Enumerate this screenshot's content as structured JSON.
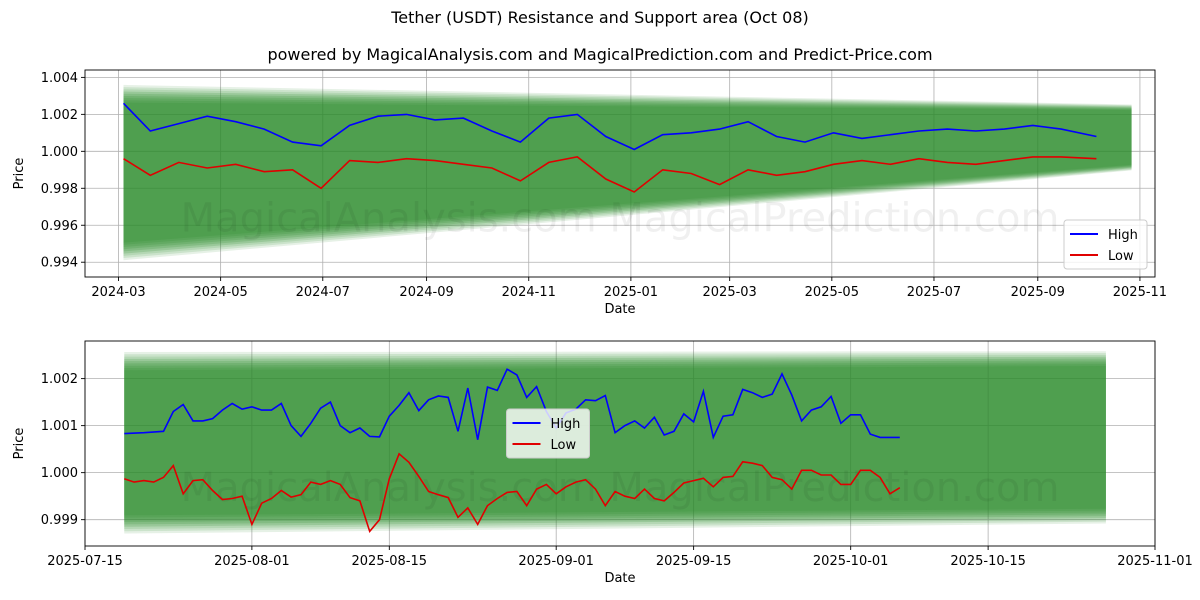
{
  "title": "Tether (USDT) Resistance and Support area (Oct 08)",
  "subtitle": "powered by MagicalAnalysis.com and MagicalPrediction.com and Predict-Price.com",
  "watermark": "MagicalAnalysis.com    MagicalPrediction.com",
  "colors": {
    "high": "#0000ff",
    "low": "#e00000",
    "band": "#2e8b2e",
    "grid": "#b0b0b0"
  },
  "chart_data": [
    {
      "type": "line",
      "name": "full-range",
      "xlabel": "Date",
      "ylabel": "Price",
      "xlim": [
        "2024-02-10",
        "2025-11-10"
      ],
      "ylim": [
        0.9932,
        1.0044
      ],
      "xticks": [
        {
          "date": "2024-03-01",
          "label": "2024-03"
        },
        {
          "date": "2024-05-01",
          "label": "2024-05"
        },
        {
          "date": "2024-07-01",
          "label": "2024-07"
        },
        {
          "date": "2024-09-01",
          "label": "2024-09"
        },
        {
          "date": "2024-11-01",
          "label": "2024-11"
        },
        {
          "date": "2025-01-01",
          "label": "2025-01"
        },
        {
          "date": "2025-03-01",
          "label": "2025-03"
        },
        {
          "date": "2025-05-01",
          "label": "2025-05"
        },
        {
          "date": "2025-07-01",
          "label": "2025-07"
        },
        {
          "date": "2025-09-01",
          "label": "2025-09"
        },
        {
          "date": "2025-11-01",
          "label": "2025-11"
        }
      ],
      "yticks": [
        0.994,
        0.996,
        0.998,
        1.0,
        1.002,
        1.004
      ],
      "ytick_labels": [
        "0.994",
        "0.996",
        "0.998",
        "1.000",
        "1.002",
        "1.004"
      ],
      "grid": true,
      "legend_position": "lower-right",
      "band": {
        "x_start": "2024-03-04",
        "x_end": "2025-10-27",
        "upper_start": 1.0038,
        "upper_end": 1.0026,
        "lower_start": 0.9939,
        "lower_end": 0.9989
      },
      "series": [
        {
          "name": "High",
          "color": "#0000ff",
          "x": [
            "2024-03-04",
            "2024-03-20",
            "2024-04-06",
            "2024-04-23",
            "2024-05-10",
            "2024-05-27",
            "2024-06-13",
            "2024-06-30",
            "2024-07-17",
            "2024-08-03",
            "2024-08-20",
            "2024-09-06",
            "2024-09-23",
            "2024-10-10",
            "2024-10-27",
            "2024-11-13",
            "2024-11-30",
            "2024-12-17",
            "2025-01-03",
            "2025-01-20",
            "2025-02-06",
            "2025-02-23",
            "2025-03-12",
            "2025-03-29",
            "2025-04-15",
            "2025-05-02",
            "2025-05-19",
            "2025-06-05",
            "2025-06-22",
            "2025-07-09",
            "2025-07-26",
            "2025-08-12",
            "2025-08-29",
            "2025-09-15",
            "2025-10-06"
          ],
          "y": [
            1.0026,
            1.0011,
            1.0015,
            1.0019,
            1.0016,
            1.0012,
            1.0005,
            1.0003,
            1.0014,
            1.0019,
            1.002,
            1.0017,
            1.0018,
            1.0011,
            1.0005,
            1.0018,
            1.002,
            1.0008,
            1.0001,
            1.0009,
            1.001,
            1.0012,
            1.0016,
            1.0008,
            1.0005,
            1.001,
            1.0007,
            1.0009,
            1.0011,
            1.0012,
            1.0011,
            1.0012,
            1.0014,
            1.0012,
            1.0008
          ]
        },
        {
          "name": "Low",
          "color": "#e00000",
          "x": [
            "2024-03-04",
            "2024-03-20",
            "2024-04-06",
            "2024-04-23",
            "2024-05-10",
            "2024-05-27",
            "2024-06-13",
            "2024-06-30",
            "2024-07-17",
            "2024-08-03",
            "2024-08-20",
            "2024-09-06",
            "2024-09-23",
            "2024-10-10",
            "2024-10-27",
            "2024-11-13",
            "2024-11-30",
            "2024-12-17",
            "2025-01-03",
            "2025-01-20",
            "2025-02-06",
            "2025-02-23",
            "2025-03-12",
            "2025-03-29",
            "2025-04-15",
            "2025-05-02",
            "2025-05-19",
            "2025-06-05",
            "2025-06-22",
            "2025-07-09",
            "2025-07-26",
            "2025-08-12",
            "2025-08-29",
            "2025-09-15",
            "2025-10-06"
          ],
          "y": [
            0.9996,
            0.9987,
            0.9994,
            0.9991,
            0.9993,
            0.9989,
            0.999,
            0.998,
            0.9995,
            0.9994,
            0.9996,
            0.9995,
            0.9993,
            0.9991,
            0.9984,
            0.9994,
            0.9997,
            0.9985,
            0.9978,
            0.999,
            0.9988,
            0.9982,
            0.999,
            0.9987,
            0.9989,
            0.9993,
            0.9995,
            0.9993,
            0.9996,
            0.9994,
            0.9993,
            0.9995,
            0.9997,
            0.9997,
            0.9996
          ]
        }
      ]
    },
    {
      "type": "line",
      "name": "recent-zoom",
      "xlabel": "Date",
      "ylabel": "Price",
      "xlim": [
        "2025-07-15",
        "2025-11-01"
      ],
      "ylim": [
        0.99844,
        1.0028
      ],
      "xticks": [
        {
          "date": "2025-07-15",
          "label": "2025-07-15"
        },
        {
          "date": "2025-08-01",
          "label": "2025-08-01"
        },
        {
          "date": "2025-08-15",
          "label": "2025-08-15"
        },
        {
          "date": "2025-09-01",
          "label": "2025-09-01"
        },
        {
          "date": "2025-09-15",
          "label": "2025-09-15"
        },
        {
          "date": "2025-10-01",
          "label": "2025-10-01"
        },
        {
          "date": "2025-10-15",
          "label": "2025-10-15"
        },
        {
          "date": "2025-11-01",
          "label": "2025-11-01"
        }
      ],
      "yticks": [
        0.999,
        1.0,
        1.001,
        1.002
      ],
      "ytick_labels": [
        "0.999",
        "1.000",
        "1.001",
        "1.002"
      ],
      "grid": true,
      "legend_position": "center",
      "band": {
        "x_start": "2025-07-19",
        "x_end": "2025-10-27",
        "upper_start": 1.00265,
        "upper_end": 1.00265,
        "lower_start": 0.99862,
        "lower_end": 0.99885
      },
      "series": [
        {
          "name": "High",
          "color": "#0000ff",
          "x": [
            "2025-07-19",
            "2025-07-21",
            "2025-07-23",
            "2025-07-24",
            "2025-07-25",
            "2025-07-26",
            "2025-07-27",
            "2025-07-28",
            "2025-07-29",
            "2025-07-30",
            "2025-07-31",
            "2025-08-01",
            "2025-08-02",
            "2025-08-03",
            "2025-08-04",
            "2025-08-05",
            "2025-08-06",
            "2025-08-07",
            "2025-08-08",
            "2025-08-09",
            "2025-08-10",
            "2025-08-11",
            "2025-08-12",
            "2025-08-13",
            "2025-08-14",
            "2025-08-15",
            "2025-08-16",
            "2025-08-17",
            "2025-08-18",
            "2025-08-19",
            "2025-08-20",
            "2025-08-21",
            "2025-08-22",
            "2025-08-23",
            "2025-08-24",
            "2025-08-25",
            "2025-08-26",
            "2025-08-27",
            "2025-08-28",
            "2025-08-29",
            "2025-08-30",
            "2025-08-31",
            "2025-09-01",
            "2025-09-02",
            "2025-09-03",
            "2025-09-04",
            "2025-09-05",
            "2025-09-06",
            "2025-09-07",
            "2025-09-08",
            "2025-09-09",
            "2025-09-10",
            "2025-09-11",
            "2025-09-12",
            "2025-09-13",
            "2025-09-14",
            "2025-09-15",
            "2025-09-16",
            "2025-09-17",
            "2025-09-18",
            "2025-09-19",
            "2025-09-20",
            "2025-09-21",
            "2025-09-22",
            "2025-09-23",
            "2025-09-24",
            "2025-09-25",
            "2025-09-26",
            "2025-09-27",
            "2025-09-28",
            "2025-09-29",
            "2025-09-30",
            "2025-10-01",
            "2025-10-02",
            "2025-10-03",
            "2025-10-04",
            "2025-10-05",
            "2025-10-06"
          ],
          "y": [
            1.00083,
            1.00085,
            1.00088,
            1.0013,
            1.00145,
            1.0011,
            1.0011,
            1.00115,
            1.00133,
            1.00147,
            1.00135,
            1.0014,
            1.00133,
            1.00133,
            1.00147,
            1.001,
            1.00077,
            1.00105,
            1.00137,
            1.0015,
            1.001,
            1.00085,
            1.00095,
            1.00077,
            1.00076,
            1.0012,
            1.00143,
            1.0017,
            1.00132,
            1.00155,
            1.00163,
            1.0016,
            1.00088,
            1.0018,
            1.0007,
            1.00182,
            1.00175,
            1.0022,
            1.00208,
            1.0016,
            1.00183,
            1.0013,
            1.00095,
            1.00127,
            1.00135,
            1.00155,
            1.00153,
            1.00164,
            1.00085,
            1.001,
            1.0011,
            1.00095,
            1.00118,
            1.0008,
            1.00088,
            1.00125,
            1.00108,
            1.00173,
            1.00075,
            1.0012,
            1.00123,
            1.00177,
            1.0017,
            1.0016,
            1.00167,
            1.0021,
            1.00165,
            1.0011,
            1.00133,
            1.0014,
            1.00162,
            1.00105,
            1.00123,
            1.00123,
            1.00082,
            1.00075,
            1.00075,
            1.00075
          ]
        },
        {
          "name": "Low",
          "color": "#e00000",
          "x": [
            "2025-07-19",
            "2025-07-20",
            "2025-07-21",
            "2025-07-22",
            "2025-07-23",
            "2025-07-24",
            "2025-07-25",
            "2025-07-26",
            "2025-07-27",
            "2025-07-28",
            "2025-07-29",
            "2025-07-30",
            "2025-07-31",
            "2025-08-01",
            "2025-08-02",
            "2025-08-03",
            "2025-08-04",
            "2025-08-05",
            "2025-08-06",
            "2025-08-07",
            "2025-08-08",
            "2025-08-09",
            "2025-08-10",
            "2025-08-11",
            "2025-08-12",
            "2025-08-13",
            "2025-08-14",
            "2025-08-15",
            "2025-08-16",
            "2025-08-17",
            "2025-08-18",
            "2025-08-19",
            "2025-08-20",
            "2025-08-21",
            "2025-08-22",
            "2025-08-23",
            "2025-08-24",
            "2025-08-25",
            "2025-08-26",
            "2025-08-27",
            "2025-08-28",
            "2025-08-29",
            "2025-08-30",
            "2025-08-31",
            "2025-09-01",
            "2025-09-02",
            "2025-09-03",
            "2025-09-04",
            "2025-09-05",
            "2025-09-06",
            "2025-09-07",
            "2025-09-08",
            "2025-09-09",
            "2025-09-10",
            "2025-09-11",
            "2025-09-12",
            "2025-09-13",
            "2025-09-14",
            "2025-09-15",
            "2025-09-16",
            "2025-09-17",
            "2025-09-18",
            "2025-09-19",
            "2025-09-20",
            "2025-09-21",
            "2025-09-22",
            "2025-09-23",
            "2025-09-24",
            "2025-09-25",
            "2025-09-26",
            "2025-09-27",
            "2025-09-28",
            "2025-09-29",
            "2025-09-30",
            "2025-10-01",
            "2025-10-02",
            "2025-10-03",
            "2025-10-04",
            "2025-10-05",
            "2025-10-06"
          ],
          "y": [
            0.99987,
            0.9998,
            0.99983,
            0.9998,
            0.9999,
            1.00015,
            0.99955,
            0.99983,
            0.99985,
            0.99962,
            0.99943,
            0.99945,
            0.9995,
            0.9989,
            0.99935,
            0.99945,
            0.99962,
            0.99948,
            0.99953,
            0.9998,
            0.99975,
            0.99983,
            0.99975,
            0.99947,
            0.9994,
            0.99875,
            0.999,
            0.99987,
            1.0004,
            1.00022,
            0.99992,
            0.9996,
            0.99953,
            0.99947,
            0.99905,
            0.99925,
            0.9989,
            0.9993,
            0.99945,
            0.99958,
            0.9996,
            0.9993,
            0.99965,
            0.99975,
            0.99955,
            0.9997,
            0.9998,
            0.99985,
            0.99965,
            0.9993,
            0.9996,
            0.9995,
            0.99945,
            0.99965,
            0.99945,
            0.9994,
            0.99958,
            0.99978,
            0.99983,
            0.99988,
            0.9997,
            0.9999,
            0.99992,
            1.00023,
            1.0002,
            1.00015,
            0.9999,
            0.99985,
            0.99965,
            1.00005,
            1.00005,
            0.99995,
            0.99995,
            0.99975,
            0.99975,
            1.00005,
            1.00005,
            0.9999,
            0.99955,
            0.99968
          ]
        }
      ]
    }
  ]
}
